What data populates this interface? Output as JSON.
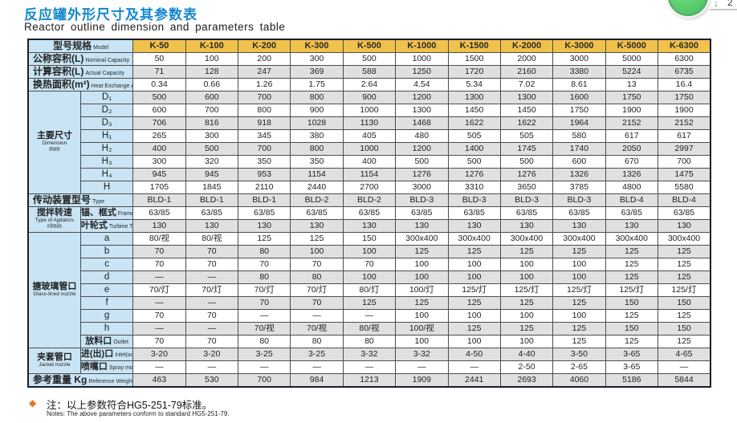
{
  "page": {
    "title_zh": "反应罐外形尺寸及其参数表",
    "title_en": "Reactor outline dimension and parameters table"
  },
  "badge": {
    "arrow": "↓",
    "count": "2"
  },
  "colors": {
    "title_blue": "#1488CC",
    "header_yellow": "#F0C14B",
    "label_blue": "#C9E4F4",
    "row_alt_gray": "#E0E0E0",
    "badge_green": "#4CC663",
    "note_diamond_orange": "#E87820"
  },
  "table": {
    "header": {
      "label_zh": "型号规格",
      "label_en": "Model",
      "models": [
        "K-50",
        "K-100",
        "K-200",
        "K-300",
        "K-500",
        "K-1000",
        "K-1500",
        "K-2000",
        "K-3000",
        "K-5000",
        "K-6300"
      ]
    },
    "rows": [
      {
        "full": true,
        "label_zh": "公称容积(L)",
        "label_en": "Nominal Capacity",
        "values": [
          "50",
          "100",
          "200",
          "300",
          "500",
          "1000",
          "1500",
          "2000",
          "3000",
          "5000",
          "6300"
        ]
      },
      {
        "full": true,
        "label_zh": "计算容积(L)",
        "label_en": "Actual Capacity",
        "values": [
          "71",
          "128",
          "247",
          "369",
          "588",
          "1250",
          "1720",
          "2160",
          "3380",
          "5224",
          "6735"
        ]
      },
      {
        "full": true,
        "label_zh": "换热面积(m²)",
        "label_en": "Heat Exchange Area",
        "values": [
          "0.34",
          "0.66",
          "1.26",
          "1.75",
          "2.64",
          "4.54",
          "5.34",
          "7.02",
          "8.61",
          "13",
          "16.4"
        ]
      },
      {
        "group": {
          "zh": "主要尺寸",
          "en": "Dimension",
          "unit": "mm",
          "span": 8
        },
        "label_zh": "D₁",
        "values": [
          "500",
          "600",
          "700",
          "800",
          "900",
          "1200",
          "1300",
          "1300",
          "1600",
          "1750",
          "1750"
        ]
      },
      {
        "label_zh": "D₂",
        "values": [
          "600",
          "700",
          "800",
          "900",
          "1000",
          "1300",
          "1450",
          "1450",
          "1750",
          "1900",
          "1900"
        ]
      },
      {
        "label_zh": "D₃",
        "values": [
          "706",
          "816",
          "918",
          "1028",
          "1130",
          "1468",
          "1622",
          "1622",
          "1964",
          "2152",
          "2152"
        ]
      },
      {
        "label_zh": "H₁",
        "values": [
          "265",
          "300",
          "345",
          "380",
          "405",
          "480",
          "505",
          "505",
          "580",
          "617",
          "617"
        ]
      },
      {
        "label_zh": "H₂",
        "values": [
          "400",
          "500",
          "700",
          "800",
          "1000",
          "1200",
          "1400",
          "1745",
          "1740",
          "2050",
          "2997"
        ]
      },
      {
        "label_zh": "H₃",
        "values": [
          "300",
          "320",
          "350",
          "350",
          "400",
          "500",
          "500",
          "500",
          "600",
          "670",
          "700"
        ]
      },
      {
        "label_zh": "H₄",
        "values": [
          "945",
          "945",
          "953",
          "1154",
          "1154",
          "1276",
          "1276",
          "1276",
          "1326",
          "1326",
          "1475"
        ]
      },
      {
        "label_zh": "H",
        "values": [
          "1705",
          "1845",
          "2110",
          "2440",
          "2700",
          "3000",
          "3310",
          "3650",
          "3785",
          "4800",
          "5580"
        ]
      },
      {
        "full": true,
        "label_zh": "传动装置型号",
        "label_en": "Type",
        "values": [
          "BLD-1",
          "BLD-1",
          "BLD-1",
          "BLD-2",
          "BLD-2",
          "BLD-3",
          "BLD-3",
          "BLD-3",
          "BLD-3",
          "BLD-4",
          "BLD-4"
        ]
      },
      {
        "group": {
          "zh": "搅拌转速",
          "en": "Type of Agitators",
          "unit": "r/min",
          "span": 2
        },
        "label_zh": "锚、框式",
        "label_en": "Frame/Anchor Type",
        "values": [
          "63/85",
          "63/85",
          "63/85",
          "63/85",
          "63/85",
          "63/85",
          "63/85",
          "63/85",
          "63/85",
          "63/85",
          "63/85"
        ]
      },
      {
        "label_zh": "叶轮式",
        "label_en": "Turbine Type",
        "values": [
          "130",
          "130",
          "130",
          "130",
          "130",
          "130",
          "130",
          "130",
          "130",
          "130",
          "130"
        ]
      },
      {
        "group": {
          "zh": "搪玻璃管口",
          "en": "Glass-lined nozzle",
          "span": 9
        },
        "label_zh": "a",
        "values": [
          "80/视",
          "80/视",
          "125",
          "125",
          "150",
          "300x400",
          "300x400",
          "300x400",
          "300x400",
          "300x400",
          "300x400"
        ]
      },
      {
        "label_zh": "b",
        "values": [
          "70",
          "70",
          "80",
          "100",
          "100",
          "125",
          "125",
          "125",
          "125",
          "125",
          "125"
        ]
      },
      {
        "label_zh": "c",
        "values": [
          "70",
          "70",
          "70",
          "70",
          "70",
          "100",
          "100",
          "100",
          "100",
          "125",
          "125"
        ]
      },
      {
        "label_zh": "d",
        "values": [
          "—",
          "—",
          "80",
          "80",
          "100",
          "100",
          "100",
          "100",
          "100",
          "125",
          "125"
        ]
      },
      {
        "label_zh": "e",
        "values": [
          "70/灯",
          "70/灯",
          "70/灯",
          "70/灯",
          "80/灯",
          "100/灯",
          "125/灯",
          "125/灯",
          "125/灯",
          "125/灯",
          "125/灯"
        ]
      },
      {
        "label_zh": "f",
        "values": [
          "—",
          "—",
          "70",
          "70",
          "125",
          "125",
          "125",
          "125",
          "125",
          "150",
          "150"
        ]
      },
      {
        "label_zh": "g",
        "values": [
          "70",
          "70",
          "—",
          "—",
          "—",
          "100",
          "100",
          "100",
          "100",
          "125",
          "125"
        ]
      },
      {
        "label_zh": "h",
        "values": [
          "—",
          "—",
          "70/视",
          "70/视",
          "80/视",
          "100/视",
          "125",
          "125",
          "125",
          "150",
          "150"
        ]
      },
      {
        "label_zh": "放料口",
        "label_en": "Outlet",
        "values": [
          "70",
          "70",
          "80",
          "80",
          "80",
          "100",
          "100",
          "100",
          "125",
          "125",
          "125"
        ]
      },
      {
        "group": {
          "zh": "夹套管口",
          "en": "Jacket nozzle",
          "span": 2
        },
        "label_zh": "进(出)口",
        "label_en": "Inlet(outlet)",
        "values": [
          "3-20",
          "3-20",
          "3-25",
          "3-25",
          "3-32",
          "3-32",
          "4-50",
          "4-40",
          "3-50",
          "3-65",
          "4-65"
        ]
      },
      {
        "label_zh": "喷嘴口",
        "label_en": "Spray mouth",
        "values": [
          "—",
          "—",
          "—",
          "—",
          "—",
          "—",
          "—",
          "2-50",
          "2-65",
          "3-65",
          "—"
        ]
      },
      {
        "full": true,
        "label_zh": "参考重量 Kg",
        "label_en": "Reference Weight",
        "values": [
          "463",
          "530",
          "700",
          "984",
          "1213",
          "1909",
          "2441",
          "2693",
          "4060",
          "5186",
          "5844"
        ]
      }
    ]
  },
  "footer": {
    "bullet": "◆",
    "note_zh": "注：以上参数符合HG5-251-79标准。",
    "note_en": "Notes: The above parameters conform to standard HG5-251-79."
  }
}
